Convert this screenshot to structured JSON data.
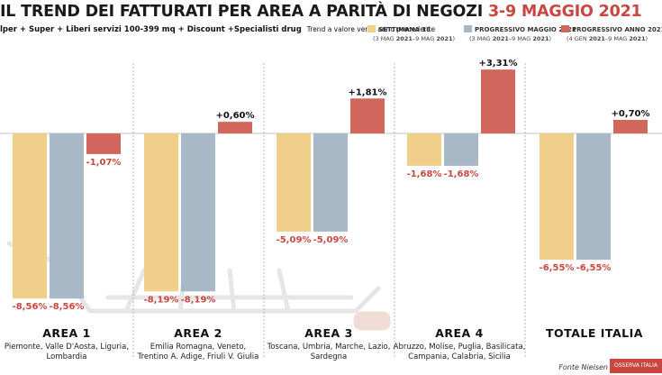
{
  "title": {
    "main": "IL TREND DEI FATTURATI PER AREA A PARITÀ DI NEGOZI",
    "highlight": "3-9 MAGGIO 2021"
  },
  "subtitle": {
    "main": "lper + Super + Liberi servizi 100-399 mq + Discount +Specialisti drug",
    "note": "Trend a valore verso anno precedente"
  },
  "source": "Fonte Nielsen",
  "logo_text": "OSSERVA ITALIA",
  "colors": {
    "series1": "#f0cf8a",
    "series2": "#a8b8c6",
    "series3": "#d1665d",
    "neg_label": "#c8473f",
    "pos_label": "#111111"
  },
  "chart_data": {
    "type": "bar",
    "categories": [
      "AREA 1",
      "AREA 2",
      "AREA 3",
      "AREA 4",
      "TOTALE ITALIA"
    ],
    "category_descriptions": [
      [
        "Piemonte, Valle D'Aosta, Liguria,",
        "Lombardia"
      ],
      [
        "Emilia Romagna, Veneto,",
        "Trentino A. Adige, Friuli V. Giulia"
      ],
      [
        "Toscana, Umbria, Marche, Lazio,",
        "Sardegna"
      ],
      [
        "Abruzzo, Molise, Puglia, Basilicata,",
        "Campania, Calabria, Sicilia"
      ],
      []
    ],
    "series": [
      {
        "name": "SETTIMANA 18",
        "period": [
          "(3 MAG ",
          "2021",
          "–9 MAG ",
          "2021",
          ")"
        ],
        "values": [
          -8.56,
          -8.19,
          -5.09,
          -1.68,
          -6.55
        ],
        "labels": [
          "-8,56%",
          "-8,19%",
          "-5,09%",
          "-1,68%",
          "-6,55%"
        ]
      },
      {
        "name": "PROGRESSIVO MAGGIO 2021",
        "period": [
          "(3 MAG ",
          "2021",
          "–9 MAG ",
          "2021",
          ")"
        ],
        "values": [
          -8.56,
          -8.19,
          -5.09,
          -1.68,
          -6.55
        ],
        "labels": [
          "-8,56%",
          "-8,19%",
          "-5,09%",
          "-1,68%",
          "-6,55%"
        ]
      },
      {
        "name": "PROGRESSIVO ANNO 2021",
        "period": [
          "(4 GEN ",
          "2021",
          "–9 MAG ",
          "2021",
          ")"
        ],
        "values": [
          -1.07,
          0.6,
          1.81,
          3.31,
          0.7
        ],
        "labels": [
          "-1,07%",
          "+0,60%",
          "+1,81%",
          "+3,31%",
          "+0,70%"
        ]
      }
    ],
    "ylabel": "",
    "grid": false,
    "legend_position": "top-right"
  }
}
